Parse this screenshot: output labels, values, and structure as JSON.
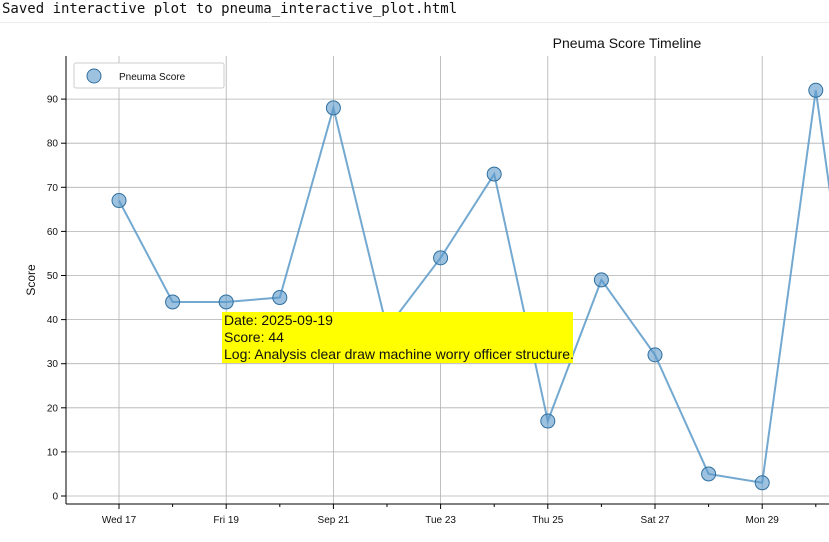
{
  "console": {
    "message": "Saved interactive plot to pneuma_interactive_plot.html"
  },
  "tooltip": {
    "date": "Date: 2025-09-19",
    "score": "Score: 44",
    "log": "Log: Analysis clear draw machine worry officer structure."
  },
  "colors": {
    "series": "#5b9ac9",
    "tooltip_bg": "#ffff00",
    "grid": "#b0b0b0"
  },
  "chart_data": {
    "type": "line",
    "title": "Pneuma Score Timeline",
    "xlabel": "",
    "ylabel": "Score",
    "ylim": [
      0,
      100
    ],
    "xlim": [
      "2025-09-15",
      "2025-09-30"
    ],
    "grid": true,
    "legend": "top-left",
    "y_ticks": [
      0,
      10,
      20,
      30,
      40,
      50,
      60,
      70,
      80,
      90
    ],
    "x_ticks": [
      {
        "date": "2025-09-17",
        "label": "Wed 17"
      },
      {
        "date": "2025-09-19",
        "label": "Fri 19"
      },
      {
        "date": "2025-09-21",
        "label": "Sep 21"
      },
      {
        "date": "2025-09-23",
        "label": "Tue 23"
      },
      {
        "date": "2025-09-25",
        "label": "Thu 25"
      },
      {
        "date": "2025-09-27",
        "label": "Sat 27"
      },
      {
        "date": "2025-09-29",
        "label": "Mon 29"
      }
    ],
    "series": [
      {
        "name": "Pneuma Score",
        "points": [
          {
            "x": "2025-09-17",
            "y": 67
          },
          {
            "x": "2025-09-18",
            "y": 44
          },
          {
            "x": "2025-09-19",
            "y": 44
          },
          {
            "x": "2025-09-20",
            "y": 45
          },
          {
            "x": "2025-09-21",
            "y": 88
          },
          {
            "x": "2025-09-22",
            "y": 38
          },
          {
            "x": "2025-09-23",
            "y": 54
          },
          {
            "x": "2025-09-24",
            "y": 73
          },
          {
            "x": "2025-09-25",
            "y": 17
          },
          {
            "x": "2025-09-26",
            "y": 49
          },
          {
            "x": "2025-09-27",
            "y": 32
          },
          {
            "x": "2025-09-28",
            "y": 5
          },
          {
            "x": "2025-09-29",
            "y": 3
          },
          {
            "x": "2025-09-30",
            "y": 92
          }
        ]
      }
    ]
  }
}
